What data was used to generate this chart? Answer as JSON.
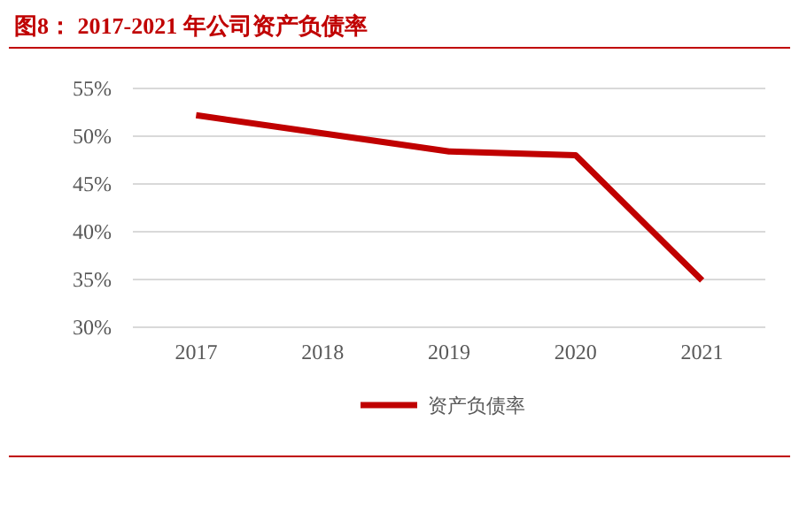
{
  "chart_data": {
    "type": "line",
    "title": "图8：  2017-2021 年公司资产负债率",
    "categories": [
      "2017",
      "2018",
      "2019",
      "2020",
      "2021"
    ],
    "series": [
      {
        "name": "资产负债率",
        "color": "#c00000",
        "values": [
          52.2,
          50.3,
          48.4,
          48.0,
          34.9
        ]
      }
    ],
    "ylim": [
      30,
      55
    ],
    "yticks": [
      {
        "value": 30,
        "label": "30%"
      },
      {
        "value": 35,
        "label": "35%"
      },
      {
        "value": 40,
        "label": "40%"
      },
      {
        "value": 45,
        "label": "45%"
      },
      {
        "value": 50,
        "label": "50%"
      },
      {
        "value": 55,
        "label": "55%"
      }
    ],
    "grid": "y",
    "legend": "bottom",
    "marker": "none",
    "line_style": "solid"
  }
}
